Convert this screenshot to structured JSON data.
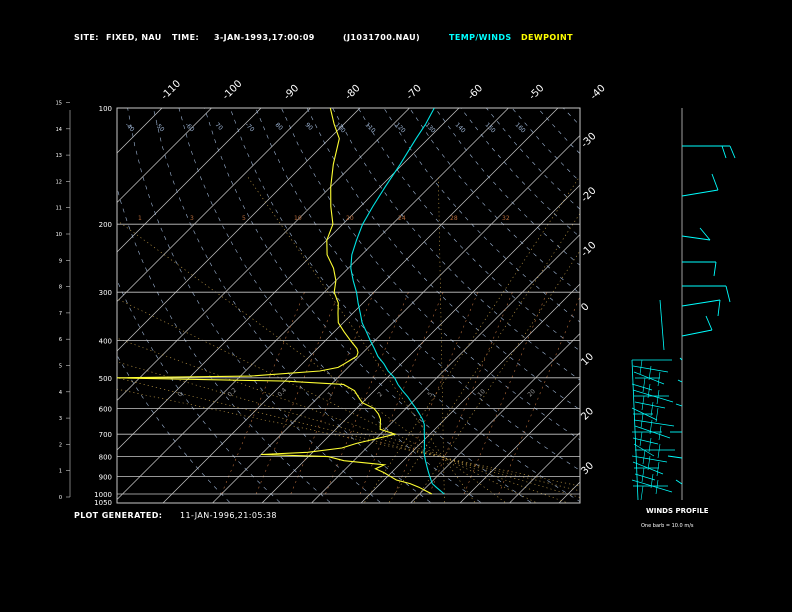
{
  "header": {
    "site_label": "SITE:",
    "site_value": "FIXED, NAU",
    "time_label": "TIME:",
    "time_value": "3-JAN-1993,17:00:09",
    "file": "(J1031700.NAU)",
    "temp_winds": "TEMP/WINDS",
    "dewpoint": "DEWPOINT"
  },
  "footer": {
    "generated_label": "PLOT GENERATED:",
    "generated_value": "11-JAN-1996,21:05:38"
  },
  "winds": {
    "title": "WINDS PROFILE",
    "note": "One barb = 10.0 m/s"
  },
  "colors": {
    "temp_winds": "#00ffff",
    "dewpoint": "#ffff00",
    "temp_line": "#00e5e5",
    "dew_line": "#ffff33",
    "frame": "#c8c8c8",
    "dry_adiabat": "#9fb6d6",
    "moist_adiabat": "#c9a24a",
    "mixing_ratio": "#b56a3a"
  },
  "chart_data": {
    "type": "line",
    "title": "",
    "pressure_levels_mb": [
      1050,
      1000,
      900,
      800,
      700,
      600,
      500,
      400,
      300,
      200,
      100
    ],
    "height_ticks_km": [
      0,
      1,
      2,
      3,
      4,
      5,
      6,
      7,
      8,
      9,
      10,
      11,
      12,
      13,
      14,
      15
    ],
    "temp_labels_top": [
      -110,
      -100,
      -90,
      -80,
      -70,
      -60,
      -50,
      -40
    ],
    "temp_labels_right": [
      -30,
      -20,
      -10,
      0,
      10,
      20,
      30
    ],
    "theta_labels": [
      -40,
      -50,
      -60,
      70,
      -70,
      80,
      90,
      100,
      110,
      120,
      130,
      140,
      150,
      160
    ],
    "mixing_ratio_labels": [
      1,
      3,
      5,
      10,
      20,
      24,
      28,
      32
    ],
    "moist_labels": [
      0,
      0.2,
      0.4,
      1,
      2,
      5,
      10,
      20
    ],
    "series": [
      {
        "name": "TEMP/WINDS",
        "points": [
          [
            1000,
            5.0
          ],
          [
            980,
            3.5
          ],
          [
            960,
            2.0
          ],
          [
            940,
            0.5
          ],
          [
            920,
            -0.5
          ],
          [
            900,
            -1.5
          ],
          [
            880,
            -2.5
          ],
          [
            860,
            -3.5
          ],
          [
            840,
            -4.5
          ],
          [
            820,
            -5.5
          ],
          [
            800,
            -6.5
          ],
          [
            780,
            -7.5
          ],
          [
            760,
            -8.3
          ],
          [
            740,
            -9.2
          ],
          [
            720,
            -10.1
          ],
          [
            700,
            -11.1
          ],
          [
            680,
            -12.1
          ],
          [
            660,
            -13.1
          ],
          [
            640,
            -14.5
          ],
          [
            620,
            -16.2
          ],
          [
            600,
            -18.0
          ],
          [
            580,
            -20.0
          ],
          [
            560,
            -22.0
          ],
          [
            540,
            -24.3
          ],
          [
            520,
            -26.5
          ],
          [
            500,
            -28.5
          ],
          [
            480,
            -31.2
          ],
          [
            460,
            -33.5
          ],
          [
            440,
            -36.2
          ],
          [
            420,
            -38.5
          ],
          [
            400,
            -41.0
          ],
          [
            380,
            -43.5
          ],
          [
            360,
            -46.2
          ],
          [
            340,
            -48.5
          ],
          [
            320,
            -51.0
          ],
          [
            300,
            -53.5
          ],
          [
            280,
            -56.5
          ],
          [
            260,
            -59.5
          ],
          [
            240,
            -62.0
          ],
          [
            220,
            -64.0
          ],
          [
            200,
            -66.0
          ],
          [
            180,
            -67.5
          ],
          [
            160,
            -69.0
          ],
          [
            140,
            -70.5
          ],
          [
            120,
            -72.5
          ],
          [
            110,
            -73.5
          ],
          [
            100,
            -75.0
          ]
        ]
      },
      {
        "name": "DEWPOINT",
        "points": [
          [
            1000,
            2.5
          ],
          [
            980,
            0.5
          ],
          [
            960,
            -1.5
          ],
          [
            940,
            -4.0
          ],
          [
            920,
            -7.5
          ],
          [
            900,
            -9.5
          ],
          [
            880,
            -11.5
          ],
          [
            860,
            -14.0
          ],
          [
            840,
            -13.0
          ],
          [
            820,
            -22.0
          ],
          [
            800,
            -26.0
          ],
          [
            790,
            -40.0
          ],
          [
            780,
            -31.0
          ],
          [
            760,
            -25.0
          ],
          [
            740,
            -23.0
          ],
          [
            720,
            -20.0
          ],
          [
            700,
            -17.0
          ],
          [
            680,
            -21.0
          ],
          [
            660,
            -22.0
          ],
          [
            640,
            -23.0
          ],
          [
            620,
            -24.5
          ],
          [
            600,
            -26.5
          ],
          [
            580,
            -30.0
          ],
          [
            560,
            -32.0
          ],
          [
            540,
            -34.0
          ],
          [
            520,
            -37.5
          ],
          [
            510,
            -50.0
          ],
          [
            500,
            -85.0
          ],
          [
            495,
            -58.0
          ],
          [
            480,
            -45.0
          ],
          [
            470,
            -42.0
          ],
          [
            460,
            -41.5
          ],
          [
            450,
            -41.0
          ],
          [
            440,
            -40.5
          ],
          [
            430,
            -41.0
          ],
          [
            420,
            -42.0
          ],
          [
            400,
            -45.0
          ],
          [
            380,
            -48.0
          ],
          [
            360,
            -51.0
          ],
          [
            340,
            -53.0
          ],
          [
            320,
            -55.0
          ],
          [
            300,
            -58.0
          ],
          [
            280,
            -60.0
          ],
          [
            260,
            -63.0
          ],
          [
            240,
            -67.0
          ],
          [
            220,
            -70.0
          ],
          [
            200,
            -72.0
          ],
          [
            180,
            -76.0
          ],
          [
            160,
            -80.0
          ],
          [
            140,
            -84.0
          ],
          [
            120,
            -88.0
          ],
          [
            110,
            -92.0
          ],
          [
            100,
            -96.0
          ]
        ]
      }
    ],
    "winds_note": "One barb = 10.0 m/s"
  }
}
